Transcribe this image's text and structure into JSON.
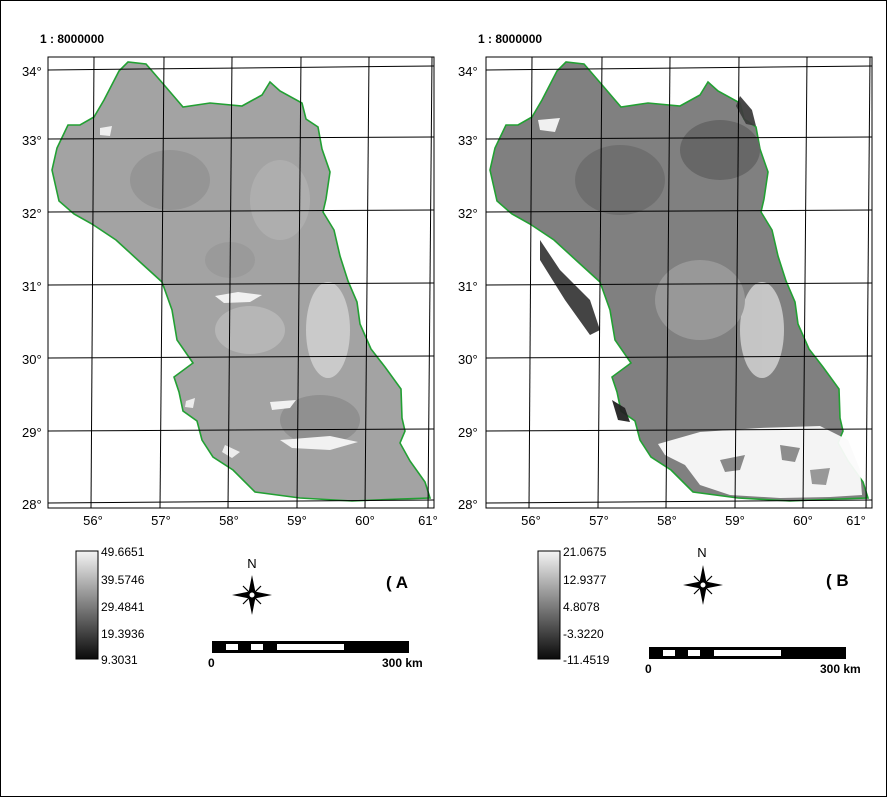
{
  "panels": [
    {
      "scale": "1 : 8000000",
      "tag": "( A",
      "lat_labels": [
        "34°",
        "33°",
        "32°",
        "31°",
        "30°",
        "29°",
        "28°"
      ],
      "lon_labels": [
        "56°",
        "57°",
        "58°",
        "59°",
        "60°",
        "61°"
      ],
      "legend": [
        "49.6651",
        "39.5746",
        "29.4841",
        "19.3936",
        "9.3031"
      ],
      "north": "N",
      "scalebar_start": "0",
      "scalebar_end": "300 km",
      "raster_tone": "#a2a2a2"
    },
    {
      "scale": "1 : 8000000",
      "tag": "( B",
      "lat_labels": [
        "34°",
        "33°",
        "32°",
        "31°",
        "30°",
        "29°",
        "28°"
      ],
      "lon_labels": [
        "56°",
        "57°",
        "58°",
        "59°",
        "60°",
        "61°"
      ],
      "legend": [
        "21.0675",
        "12.9377",
        "4.8078",
        "-3.3220",
        "-11.4519"
      ],
      "north": "N",
      "scalebar_start": "0",
      "scalebar_end": "300 km",
      "raster_tone": "#7e7e7e"
    }
  ],
  "colors": {
    "boundary": "#22a033",
    "grid": "#000000"
  }
}
